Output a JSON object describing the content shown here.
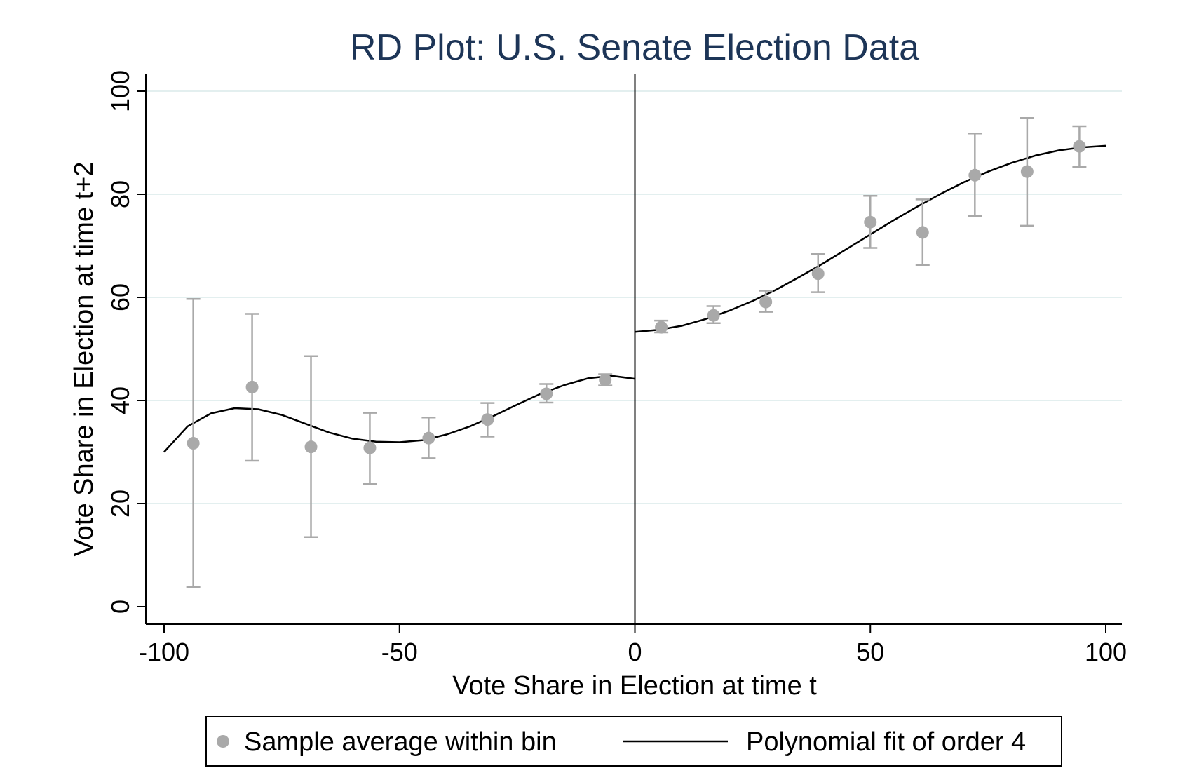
{
  "chart_data": {
    "type": "scatter",
    "title": "RD Plot: U.S. Senate Election Data",
    "xlabel": "Vote Share in Election at time t",
    "ylabel": "Vote Share in Election at time t+2",
    "xlim": [
      -100,
      100
    ],
    "ylim": [
      0,
      100
    ],
    "xticks": [
      -100,
      -50,
      0,
      50,
      100
    ],
    "yticks": [
      0,
      20,
      40,
      60,
      80,
      100
    ],
    "cutoff": 0,
    "grid": true,
    "colors": {
      "points": "#a9a9a9",
      "fit": "#000000",
      "grid": "#e3efef",
      "title": "#1d3557"
    },
    "series": [
      {
        "name": "Sample average within bin",
        "type": "scatter",
        "points": [
          {
            "x": -93.8,
            "y": 31.7,
            "lo": 3.8,
            "hi": 59.7
          },
          {
            "x": -81.3,
            "y": 42.6,
            "lo": 28.3,
            "hi": 56.8
          },
          {
            "x": -68.8,
            "y": 31.0,
            "lo": 13.5,
            "hi": 48.6
          },
          {
            "x": -56.3,
            "y": 30.8,
            "lo": 23.8,
            "hi": 37.6
          },
          {
            "x": -43.8,
            "y": 32.7,
            "lo": 28.8,
            "hi": 36.7
          },
          {
            "x": -31.3,
            "y": 36.3,
            "lo": 33.0,
            "hi": 39.5
          },
          {
            "x": -18.8,
            "y": 41.3,
            "lo": 39.6,
            "hi": 43.2
          },
          {
            "x": -6.3,
            "y": 44.0,
            "lo": 42.9,
            "hi": 45.1
          },
          {
            "x": 5.6,
            "y": 54.2,
            "lo": 53.2,
            "hi": 55.5
          },
          {
            "x": 16.7,
            "y": 56.5,
            "lo": 55.0,
            "hi": 58.3
          },
          {
            "x": 27.8,
            "y": 59.1,
            "lo": 57.2,
            "hi": 61.3
          },
          {
            "x": 38.9,
            "y": 64.6,
            "lo": 61.0,
            "hi": 68.4
          },
          {
            "x": 50.0,
            "y": 74.6,
            "lo": 69.6,
            "hi": 79.7
          },
          {
            "x": 61.1,
            "y": 72.6,
            "lo": 66.3,
            "hi": 79.0
          },
          {
            "x": 72.2,
            "y": 83.7,
            "lo": 75.8,
            "hi": 91.8
          },
          {
            "x": 83.3,
            "y": 84.4,
            "lo": 73.9,
            "hi": 94.8
          },
          {
            "x": 94.4,
            "y": 89.3,
            "lo": 85.3,
            "hi": 93.2
          }
        ]
      },
      {
        "name": "Polynomial fit of order 4",
        "type": "line",
        "segments": [
          [
            {
              "x": -100,
              "y": 30.0
            },
            {
              "x": -95,
              "y": 35.0
            },
            {
              "x": -90,
              "y": 37.5
            },
            {
              "x": -85,
              "y": 38.5
            },
            {
              "x": -80,
              "y": 38.3
            },
            {
              "x": -75,
              "y": 37.2
            },
            {
              "x": -70,
              "y": 35.5
            },
            {
              "x": -65,
              "y": 33.8
            },
            {
              "x": -60,
              "y": 32.6
            },
            {
              "x": -55,
              "y": 32.0
            },
            {
              "x": -50,
              "y": 31.9
            },
            {
              "x": -45,
              "y": 32.3
            },
            {
              "x": -40,
              "y": 33.4
            },
            {
              "x": -35,
              "y": 35.0
            },
            {
              "x": -30,
              "y": 37.0
            },
            {
              "x": -25,
              "y": 39.2
            },
            {
              "x": -20,
              "y": 41.3
            },
            {
              "x": -15,
              "y": 43.0
            },
            {
              "x": -10,
              "y": 44.3
            },
            {
              "x": -5,
              "y": 44.8
            },
            {
              "x": 0,
              "y": 44.2
            }
          ],
          [
            {
              "x": 0,
              "y": 53.3
            },
            {
              "x": 5,
              "y": 53.7
            },
            {
              "x": 10,
              "y": 54.5
            },
            {
              "x": 15,
              "y": 55.8
            },
            {
              "x": 20,
              "y": 57.4
            },
            {
              "x": 25,
              "y": 59.3
            },
            {
              "x": 30,
              "y": 61.5
            },
            {
              "x": 35,
              "y": 64.0
            },
            {
              "x": 40,
              "y": 66.6
            },
            {
              "x": 45,
              "y": 69.4
            },
            {
              "x": 50,
              "y": 72.2
            },
            {
              "x": 55,
              "y": 75.0
            },
            {
              "x": 60,
              "y": 77.6
            },
            {
              "x": 65,
              "y": 80.1
            },
            {
              "x": 70,
              "y": 82.4
            },
            {
              "x": 75,
              "y": 84.4
            },
            {
              "x": 80,
              "y": 86.1
            },
            {
              "x": 85,
              "y": 87.5
            },
            {
              "x": 90,
              "y": 88.5
            },
            {
              "x": 95,
              "y": 89.1
            },
            {
              "x": 100,
              "y": 89.4
            }
          ]
        ]
      }
    ],
    "legend": {
      "position": "bottom",
      "items": [
        "Sample average within bin",
        "Polynomial fit of order 4"
      ]
    }
  }
}
